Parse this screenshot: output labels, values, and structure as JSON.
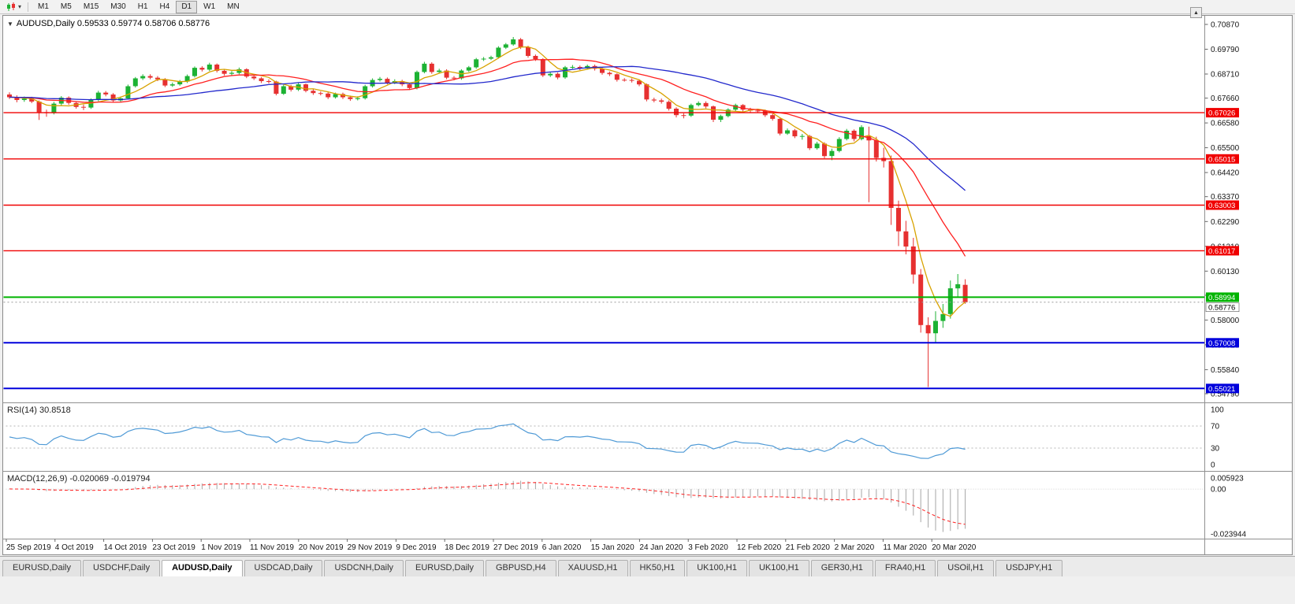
{
  "toolbar": {
    "timeframes": [
      "M1",
      "M5",
      "M15",
      "M30",
      "H1",
      "H4",
      "D1",
      "W1",
      "MN"
    ],
    "active_timeframe": "D1",
    "dropdown_glyph": "▾",
    "scroll_button_glyph": "▲"
  },
  "chart": {
    "expand_glyph": "▼",
    "title": "AUDUSD,Daily 0.59533 0.59774 0.58706 0.58776",
    "symbol": "AUDUSD",
    "period": "Daily"
  },
  "chart_data": {
    "type": "candlestick",
    "title": "AUDUSD Daily",
    "ohlc_display": {
      "open": "0.59533",
      "high": "0.59774",
      "low": "0.58706",
      "close": "0.58776"
    },
    "bull_color": "#1cb233",
    "bear_color": "#e63030",
    "y_axis": {
      "min": 0.5479,
      "max": 0.7087,
      "ticks": [
        "0.70870",
        "0.69790",
        "0.68710",
        "0.67660",
        "0.66580",
        "0.65500",
        "0.64420",
        "0.63370",
        "0.62290",
        "0.61210",
        "0.60130",
        "0.59080",
        "0.58000",
        "0.56920",
        "0.55840",
        "0.54790"
      ]
    },
    "x_axis": {
      "labels": [
        "25 Sep 2019",
        "4 Oct 2019",
        "14 Oct 2019",
        "23 Oct 2019",
        "1 Nov 2019",
        "11 Nov 2019",
        "20 Nov 2019",
        "29 Nov 2019",
        "9 Dec 2019",
        "18 Dec 2019",
        "27 Dec 2019",
        "6 Jan 2020",
        "15 Jan 2020",
        "24 Jan 2020",
        "3 Feb 2020",
        "12 Feb 2020",
        "21 Feb 2020",
        "2 Mar 2020",
        "11 Mar 2020",
        "20 Mar 2020"
      ]
    },
    "candles": [
      [
        0.6782,
        0.6791,
        0.6762,
        0.677
      ],
      [
        0.677,
        0.6778,
        0.6748,
        0.6758
      ],
      [
        0.6758,
        0.6773,
        0.675,
        0.6764
      ],
      [
        0.6764,
        0.6772,
        0.6744,
        0.6751
      ],
      [
        0.6751,
        0.6756,
        0.6671,
        0.6705
      ],
      [
        0.6705,
        0.6716,
        0.6685,
        0.6701
      ],
      [
        0.6701,
        0.675,
        0.6695,
        0.6742
      ],
      [
        0.6742,
        0.6775,
        0.6735,
        0.6768
      ],
      [
        0.6768,
        0.6774,
        0.6737,
        0.6745
      ],
      [
        0.6745,
        0.6752,
        0.672,
        0.6728
      ],
      [
        0.6728,
        0.6738,
        0.6714,
        0.6725
      ],
      [
        0.6725,
        0.6765,
        0.6719,
        0.6758
      ],
      [
        0.6758,
        0.6798,
        0.6752,
        0.679
      ],
      [
        0.679,
        0.6797,
        0.6774,
        0.6782
      ],
      [
        0.6782,
        0.6788,
        0.6748,
        0.6756
      ],
      [
        0.6756,
        0.6773,
        0.675,
        0.6765
      ],
      [
        0.6765,
        0.6825,
        0.676,
        0.6818
      ],
      [
        0.6818,
        0.6858,
        0.6812,
        0.6852
      ],
      [
        0.6852,
        0.687,
        0.6845,
        0.6862
      ],
      [
        0.6862,
        0.687,
        0.6848,
        0.6855
      ],
      [
        0.6855,
        0.6862,
        0.684,
        0.6848
      ],
      [
        0.6848,
        0.6853,
        0.6814,
        0.6821
      ],
      [
        0.6821,
        0.6834,
        0.6815,
        0.6826
      ],
      [
        0.6826,
        0.6845,
        0.682,
        0.6838
      ],
      [
        0.6838,
        0.6869,
        0.6832,
        0.6862
      ],
      [
        0.6862,
        0.6904,
        0.6856,
        0.6898
      ],
      [
        0.6898,
        0.6905,
        0.6882,
        0.689
      ],
      [
        0.689,
        0.692,
        0.6884,
        0.6912
      ],
      [
        0.6912,
        0.6917,
        0.6878,
        0.6885
      ],
      [
        0.6885,
        0.6892,
        0.6864,
        0.6872
      ],
      [
        0.6872,
        0.6884,
        0.6866,
        0.6876
      ],
      [
        0.6876,
        0.6899,
        0.687,
        0.6892
      ],
      [
        0.6892,
        0.6896,
        0.6853,
        0.686
      ],
      [
        0.686,
        0.6868,
        0.6845,
        0.6852
      ],
      [
        0.6852,
        0.6858,
        0.6832,
        0.684
      ],
      [
        0.684,
        0.6848,
        0.683,
        0.6838
      ],
      [
        0.6838,
        0.6842,
        0.6778,
        0.6785
      ],
      [
        0.6785,
        0.6824,
        0.678,
        0.6818
      ],
      [
        0.6818,
        0.6824,
        0.6795,
        0.6803
      ],
      [
        0.6803,
        0.6832,
        0.6797,
        0.6826
      ],
      [
        0.6826,
        0.683,
        0.6791,
        0.6798
      ],
      [
        0.6798,
        0.6805,
        0.678,
        0.6788
      ],
      [
        0.6788,
        0.6795,
        0.6778,
        0.6786
      ],
      [
        0.6786,
        0.6792,
        0.6762,
        0.677
      ],
      [
        0.677,
        0.679,
        0.6764,
        0.6784
      ],
      [
        0.6784,
        0.679,
        0.6762,
        0.677
      ],
      [
        0.677,
        0.6777,
        0.6754,
        0.6762
      ],
      [
        0.6762,
        0.6774,
        0.6756,
        0.6766
      ],
      [
        0.6766,
        0.6824,
        0.676,
        0.6818
      ],
      [
        0.6818,
        0.6852,
        0.6812,
        0.6845
      ],
      [
        0.6845,
        0.6858,
        0.6838,
        0.685
      ],
      [
        0.685,
        0.6856,
        0.6826,
        0.6833
      ],
      [
        0.6833,
        0.6848,
        0.6827,
        0.684
      ],
      [
        0.684,
        0.6846,
        0.6818,
        0.6826
      ],
      [
        0.6826,
        0.6832,
        0.6802,
        0.681
      ],
      [
        0.681,
        0.6886,
        0.6804,
        0.688
      ],
      [
        0.688,
        0.6924,
        0.6874,
        0.6916
      ],
      [
        0.6916,
        0.6922,
        0.6872,
        0.688
      ],
      [
        0.688,
        0.6894,
        0.6874,
        0.6886
      ],
      [
        0.6886,
        0.6892,
        0.6848,
        0.6855
      ],
      [
        0.6855,
        0.6862,
        0.6844,
        0.6852
      ],
      [
        0.6852,
        0.6892,
        0.6846,
        0.6886
      ],
      [
        0.6886,
        0.6906,
        0.688,
        0.69
      ],
      [
        0.69,
        0.6941,
        0.6894,
        0.6935
      ],
      [
        0.6935,
        0.6945,
        0.6928,
        0.6938
      ],
      [
        0.6938,
        0.6951,
        0.6932,
        0.6944
      ],
      [
        0.6944,
        0.6992,
        0.6938,
        0.6986
      ],
      [
        0.6986,
        0.7006,
        0.698,
        0.7
      ],
      [
        0.7,
        0.7032,
        0.6994,
        0.7022
      ],
      [
        0.7022,
        0.7028,
        0.698,
        0.6988
      ],
      [
        0.6988,
        0.6994,
        0.6942,
        0.695
      ],
      [
        0.695,
        0.6956,
        0.6928,
        0.6936
      ],
      [
        0.6936,
        0.694,
        0.6858,
        0.6865
      ],
      [
        0.6865,
        0.688,
        0.6858,
        0.6872
      ],
      [
        0.6872,
        0.6878,
        0.6848,
        0.6856
      ],
      [
        0.6856,
        0.6906,
        0.685,
        0.69
      ],
      [
        0.69,
        0.691,
        0.6894,
        0.6902
      ],
      [
        0.6902,
        0.6908,
        0.6888,
        0.6896
      ],
      [
        0.6896,
        0.6912,
        0.689,
        0.6906
      ],
      [
        0.6906,
        0.6912,
        0.6886,
        0.6894
      ],
      [
        0.6894,
        0.69,
        0.6868,
        0.6876
      ],
      [
        0.6876,
        0.6882,
        0.6862,
        0.687
      ],
      [
        0.687,
        0.6874,
        0.6838,
        0.6846
      ],
      [
        0.6846,
        0.6853,
        0.6838,
        0.6845
      ],
      [
        0.6845,
        0.6852,
        0.6834,
        0.6842
      ],
      [
        0.6842,
        0.6848,
        0.6818,
        0.6826
      ],
      [
        0.6826,
        0.683,
        0.6752,
        0.676
      ],
      [
        0.676,
        0.6768,
        0.6748,
        0.6756
      ],
      [
        0.6756,
        0.6764,
        0.6742,
        0.675
      ],
      [
        0.675,
        0.6756,
        0.6712,
        0.672
      ],
      [
        0.672,
        0.6726,
        0.6682,
        0.6692
      ],
      [
        0.6692,
        0.67,
        0.6678,
        0.669
      ],
      [
        0.669,
        0.6742,
        0.6684,
        0.6736
      ],
      [
        0.6736,
        0.6752,
        0.673,
        0.6745
      ],
      [
        0.6745,
        0.6752,
        0.6722,
        0.673
      ],
      [
        0.673,
        0.6734,
        0.6662,
        0.6672
      ],
      [
        0.6672,
        0.6694,
        0.6662,
        0.6688
      ],
      [
        0.6688,
        0.6722,
        0.6682,
        0.6716
      ],
      [
        0.6716,
        0.6742,
        0.671,
        0.6736
      ],
      [
        0.6736,
        0.674,
        0.6708,
        0.6716
      ],
      [
        0.6716,
        0.6724,
        0.6704,
        0.6712
      ],
      [
        0.6712,
        0.6718,
        0.6702,
        0.671
      ],
      [
        0.671,
        0.6716,
        0.6684,
        0.6692
      ],
      [
        0.6692,
        0.6698,
        0.6668,
        0.6676
      ],
      [
        0.6676,
        0.668,
        0.6604,
        0.6612
      ],
      [
        0.6612,
        0.6634,
        0.6606,
        0.6626
      ],
      [
        0.6626,
        0.6632,
        0.6592,
        0.66
      ],
      [
        0.66,
        0.661,
        0.6585,
        0.6601
      ],
      [
        0.6601,
        0.6606,
        0.654,
        0.6548
      ],
      [
        0.6548,
        0.6576,
        0.6542,
        0.6568
      ],
      [
        0.6568,
        0.6574,
        0.6504,
        0.6514
      ],
      [
        0.6514,
        0.6546,
        0.6496,
        0.6536
      ],
      [
        0.6536,
        0.6596,
        0.653,
        0.6588
      ],
      [
        0.6588,
        0.6632,
        0.6582,
        0.6624
      ],
      [
        0.6624,
        0.663,
        0.6578,
        0.6588
      ],
      [
        0.6588,
        0.6648,
        0.6582,
        0.664
      ],
      [
        0.66,
        0.6642,
        0.6313,
        0.6582
      ],
      [
        0.6582,
        0.6598,
        0.649,
        0.6506
      ],
      [
        0.6506,
        0.655,
        0.6464,
        0.6492
      ],
      [
        0.6492,
        0.6516,
        0.6214,
        0.6288
      ],
      [
        0.6288,
        0.632,
        0.6122,
        0.6186
      ],
      [
        0.6186,
        0.6232,
        0.6086,
        0.612
      ],
      [
        0.612,
        0.6158,
        0.5958,
        0.5998
      ],
      [
        0.5998,
        0.6022,
        0.5745,
        0.5778
      ],
      [
        0.5778,
        0.5812,
        0.5508,
        0.5742
      ],
      [
        0.5742,
        0.5838,
        0.57,
        0.5796
      ],
      [
        0.5796,
        0.587,
        0.5766,
        0.5826
      ],
      [
        0.5826,
        0.5972,
        0.5806,
        0.5938
      ],
      [
        0.5938,
        0.6,
        0.5902,
        0.5956
      ],
      [
        0.59533,
        0.59774,
        0.58706,
        0.58776
      ]
    ],
    "moving_averages": [
      {
        "name": "ma-fast",
        "period": 5,
        "color": "#d8a200"
      },
      {
        "name": "ma-medium",
        "period": 14,
        "color": "#ff2020"
      },
      {
        "name": "ma-slow",
        "period": 30,
        "color": "#2228cc"
      }
    ],
    "levels": [
      {
        "price": 0.67026,
        "label": "0.67026",
        "color": "#f00000",
        "width": 1.4
      },
      {
        "price": 0.65015,
        "label": "0.65015",
        "color": "#f00000",
        "width": 1.4
      },
      {
        "price": 0.63003,
        "label": "0.63003",
        "color": "#f00000",
        "width": 1.4
      },
      {
        "price": 0.61017,
        "label": "0.61017",
        "color": "#f00000",
        "width": 1.4
      },
      {
        "price": 0.58994,
        "label": "0.58994",
        "color": "#00b400",
        "width": 2
      },
      {
        "price": 0.57008,
        "label": "0.57008",
        "color": "#0000dc",
        "width": 2
      },
      {
        "price": 0.55021,
        "label": "0.55021",
        "color": "#0000dc",
        "width": 2
      }
    ],
    "current_price": {
      "price": 0.58776,
      "label": "0.58776"
    },
    "rsi": {
      "name": "RSI",
      "period": 14,
      "value": "30.8518",
      "label_text": "RSI(14) 30.8518",
      "line_color": "#4f9ad6",
      "axis_labels": [
        "100",
        "70",
        "30",
        "0"
      ],
      "axis_values": [
        100,
        70,
        30,
        0
      ],
      "guide_levels": [
        70,
        30
      ]
    },
    "macd": {
      "name": "MACD",
      "params": "12,26,9",
      "label_text": "MACD(12,26,9) -0.020069 -0.019794",
      "values": [
        "-0.020069",
        "-0.019794"
      ],
      "axis_labels": [
        "0.005923",
        "0.00",
        "-0.023944"
      ],
      "axis_values": [
        0.005923,
        0,
        -0.023944
      ],
      "histogram_color": "#a6a6a6",
      "signal_color": "#ff2020"
    }
  },
  "tabs": {
    "items": [
      {
        "label": "EURUSD,Daily",
        "active": false
      },
      {
        "label": "USDCHF,Daily",
        "active": false
      },
      {
        "label": "AUDUSD,Daily",
        "active": true
      },
      {
        "label": "USDCAD,Daily",
        "active": false
      },
      {
        "label": "USDCNH,Daily",
        "active": false
      },
      {
        "label": "EURUSD,Daily",
        "active": false
      },
      {
        "label": "GBPUSD,H4",
        "active": false
      },
      {
        "label": "XAUUSD,H1",
        "active": false
      },
      {
        "label": "HK50,H1",
        "active": false
      },
      {
        "label": "UK100,H1",
        "active": false
      },
      {
        "label": "UK100,H1",
        "active": false
      },
      {
        "label": "GER30,H1",
        "active": false
      },
      {
        "label": "FRA40,H1",
        "active": false
      },
      {
        "label": "USOil,H1",
        "active": false
      },
      {
        "label": "USDJPY,H1",
        "active": false
      }
    ]
  }
}
